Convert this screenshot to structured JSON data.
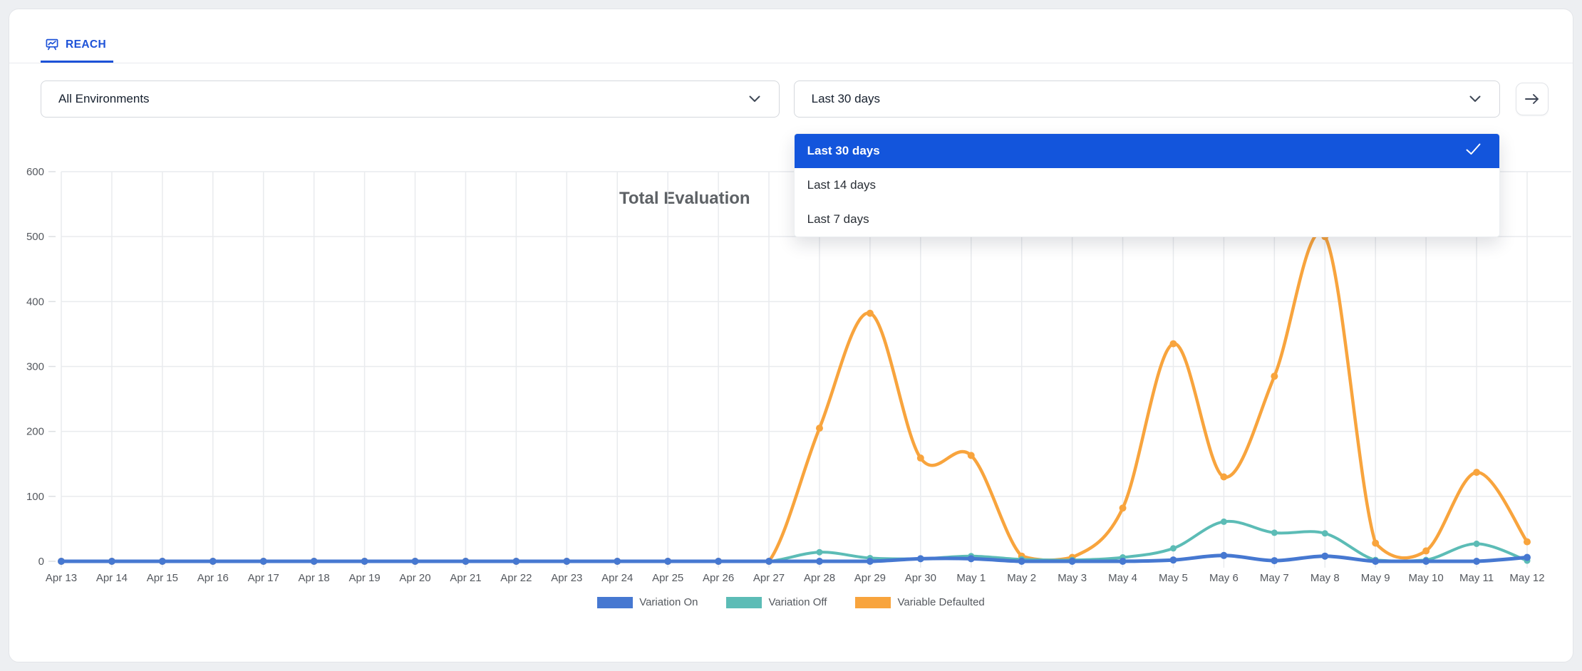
{
  "tab_bar": {
    "tabs": [
      {
        "label": "REACH",
        "active": true
      }
    ]
  },
  "controls": {
    "environment_select": {
      "value": "All Environments"
    },
    "range_select": {
      "value": "Last 30 days"
    },
    "range_menu": {
      "options": [
        {
          "label": "Last 30 days",
          "selected": true
        },
        {
          "label": "Last 14 days",
          "selected": false
        },
        {
          "label": "Last 7 days",
          "selected": false
        }
      ]
    }
  },
  "chart_data": {
    "type": "line",
    "title": "Total Evaluation",
    "categories": [
      "Apr 13",
      "Apr 14",
      "Apr 15",
      "Apr 16",
      "Apr 17",
      "Apr 18",
      "Apr 19",
      "Apr 20",
      "Apr 21",
      "Apr 22",
      "Apr 23",
      "Apr 24",
      "Apr 25",
      "Apr 26",
      "Apr 27",
      "Apr 28",
      "Apr 29",
      "Apr 30",
      "May 1",
      "May 2",
      "May 3",
      "May 4",
      "May 5",
      "May 6",
      "May 7",
      "May 8",
      "May 9",
      "May 10",
      "May 11",
      "May 12"
    ],
    "series": [
      {
        "name": "Variation On",
        "color": "#4678d1",
        "values": [
          0,
          0,
          0,
          0,
          0,
          0,
          0,
          0,
          0,
          0,
          0,
          0,
          0,
          0,
          0,
          0,
          0,
          4,
          4,
          0,
          0,
          0,
          2,
          9,
          1,
          8,
          0,
          0,
          0,
          6
        ]
      },
      {
        "name": "Variation Off",
        "color": "#5cbcb6",
        "values": [
          0,
          0,
          0,
          0,
          0,
          0,
          0,
          0,
          0,
          0,
          0,
          0,
          0,
          0,
          0,
          14,
          5,
          4,
          8,
          3,
          2,
          6,
          20,
          61,
          44,
          43,
          2,
          2,
          27,
          1
        ]
      },
      {
        "name": "Variable Defaulted",
        "color": "#f8a43d",
        "values": [
          0,
          0,
          0,
          0,
          0,
          0,
          0,
          0,
          0,
          0,
          0,
          0,
          0,
          0,
          0,
          205,
          382,
          159,
          163,
          8,
          6,
          82,
          335,
          130,
          285,
          500,
          28,
          16,
          137,
          30
        ]
      }
    ],
    "ylim": [
      0,
      600
    ],
    "ytick_step": 100,
    "grid": true,
    "legend_position": "bottom"
  },
  "colors": {
    "accent_blue": "#1d52d8",
    "menu_selected_bg": "#1355dc",
    "grid_line": "#e9ebee",
    "axis_text": "#54585e",
    "title_text": "#5d6165",
    "page_background": "#edeff2"
  }
}
